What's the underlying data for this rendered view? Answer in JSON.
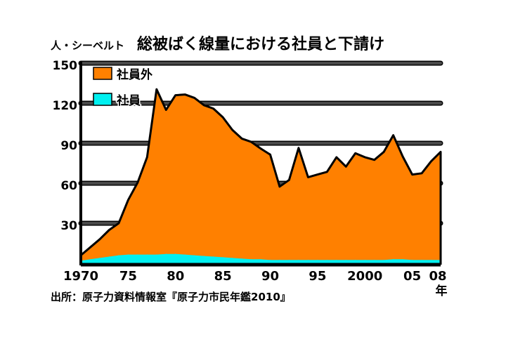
{
  "chart_data": {
    "type": "area",
    "stacked": true,
    "title": "総被ばく線量における社員と下請け",
    "unit_label": "人・シーベルト",
    "source": "出所：原子力資料情報室『原子力市民年鑑2010』",
    "xlabel": "",
    "x_unit_label": "年",
    "ylabel": "",
    "xlim": [
      1970,
      2008
    ],
    "ylim": [
      0,
      150
    ],
    "y_ticks": [
      30,
      60,
      90,
      120,
      150
    ],
    "x_tick_labels": [
      {
        "value": 1970,
        "label": "1970"
      },
      {
        "value": 1975,
        "label": "75"
      },
      {
        "value": 1980,
        "label": "80"
      },
      {
        "value": 1985,
        "label": "85"
      },
      {
        "value": 1990,
        "label": "90"
      },
      {
        "value": 1995,
        "label": "95"
      },
      {
        "value": 2000,
        "label": "2000"
      },
      {
        "value": 2005,
        "label": "05"
      },
      {
        "value": 2008,
        "label": "08"
      }
    ],
    "grid": "horizontal",
    "legend_position": "top-left",
    "x": [
      1970,
      1971,
      1972,
      1973,
      1974,
      1975,
      1976,
      1977,
      1978,
      1979,
      1980,
      1981,
      1982,
      1983,
      1984,
      1985,
      1986,
      1987,
      1988,
      1989,
      1990,
      1991,
      1992,
      1993,
      1994,
      1995,
      1996,
      1997,
      1998,
      1999,
      2000,
      2001,
      2002,
      2003,
      2004,
      2005,
      2006,
      2007,
      2008
    ],
    "series": [
      {
        "name": "社員",
        "color": "#00f0f0",
        "values": [
          2,
          3,
          4,
          5,
          6,
          6.5,
          6.5,
          6.5,
          6.5,
          7,
          7,
          6.5,
          6,
          5.5,
          5,
          4.5,
          4,
          3.5,
          3,
          3,
          2.5,
          2.5,
          2.5,
          2.5,
          2.5,
          2.5,
          2.5,
          2.5,
          2.5,
          2.5,
          2.5,
          2.5,
          2.5,
          3,
          3,
          2.5,
          2.5,
          2.5,
          2.5
        ]
      },
      {
        "name": "社員外",
        "color": "#ff8000",
        "values": [
          4,
          9,
          14,
          20,
          24,
          41,
          54,
          73,
          124,
          108,
          119,
          120,
          118,
          113,
          111,
          105,
          96,
          90,
          88,
          83,
          79,
          55,
          60,
          84,
          62,
          64,
          66,
          77,
          70,
          80,
          77,
          75,
          81,
          93,
          77,
          64,
          65,
          74,
          81
        ]
      }
    ],
    "colors": {
      "non_employee": "#ff8000",
      "employee": "#00f0f0",
      "gridline": "#3a3a3a",
      "line": "#000000"
    }
  }
}
